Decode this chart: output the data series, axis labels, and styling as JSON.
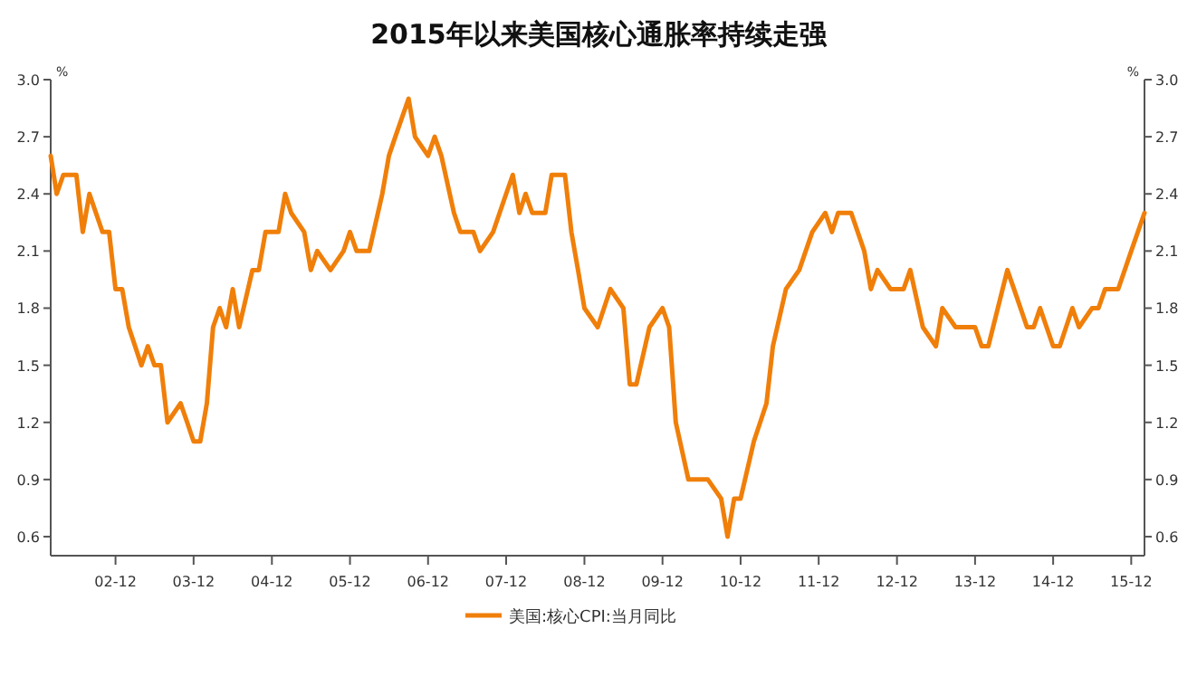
{
  "chart_data": {
    "type": "line",
    "title": "2015年以来美国核心通胀率持续走强",
    "ylabel": "%",
    "y2label": "%",
    "legend": "bottom",
    "x": [
      "2002-02",
      "2002-03",
      "2002-04",
      "2002-06",
      "2002-07",
      "2002-08",
      "2002-10",
      "2002-11",
      "2002-12",
      "2003-01",
      "2003-02",
      "2003-04",
      "2003-05",
      "2003-06",
      "2003-07",
      "2003-08",
      "2003-10",
      "2003-11",
      "2003-12",
      "2004-01",
      "2004-02",
      "2004-03",
      "2004-04",
      "2004-05",
      "2004-06",
      "2004-07",
      "2004-09",
      "2004-10",
      "2004-11",
      "2005-01",
      "2005-02",
      "2005-03",
      "2005-05",
      "2005-06",
      "2005-07",
      "2005-09",
      "2005-11",
      "2005-12",
      "2006-01",
      "2006-03",
      "2006-05",
      "2006-06",
      "2006-07",
      "2006-09",
      "2006-10",
      "2006-12",
      "2007-01",
      "2007-02",
      "2007-04",
      "2007-05",
      "2007-07",
      "2007-08",
      "2007-10",
      "2007-12",
      "2008-01",
      "2008-02",
      "2008-03",
      "2008-04",
      "2008-06",
      "2008-07",
      "2008-09",
      "2008-10",
      "2008-11",
      "2008-12",
      "2009-02",
      "2009-04",
      "2009-06",
      "2009-07",
      "2009-08",
      "2009-10",
      "2009-12",
      "2010-01",
      "2010-02",
      "2010-04",
      "2010-07",
      "2010-09",
      "2010-10",
      "2010-11",
      "2010-12",
      "2011-02",
      "2011-04",
      "2011-05",
      "2011-07",
      "2011-09",
      "2011-11",
      "2012-01",
      "2012-02",
      "2012-03",
      "2012-05",
      "2012-07",
      "2012-08",
      "2012-09",
      "2012-11",
      "2013-01",
      "2013-02",
      "2013-04",
      "2013-06",
      "2013-07",
      "2013-09",
      "2013-12",
      "2014-01",
      "2014-02",
      "2014-05",
      "2014-06",
      "2014-08",
      "2014-09",
      "2014-10",
      "2014-12",
      "2015-01",
      "2015-03",
      "2015-04",
      "2015-06",
      "2015-07",
      "2015-08",
      "2015-10",
      "2015-12",
      "2016-02"
    ],
    "series": [
      {
        "name": "美国:核心CPI:当月同比",
        "color": "#f07f0a",
        "values": [
          2.6,
          2.4,
          2.5,
          2.5,
          2.2,
          2.4,
          2.2,
          2.2,
          1.9,
          1.9,
          1.7,
          1.5,
          1.6,
          1.5,
          1.5,
          1.2,
          1.3,
          1.2,
          1.1,
          1.1,
          1.3,
          1.7,
          1.8,
          1.7,
          1.9,
          1.7,
          2.0,
          2.0,
          2.2,
          2.2,
          2.4,
          2.3,
          2.2,
          2.0,
          2.1,
          2.0,
          2.1,
          2.2,
          2.1,
          2.1,
          2.4,
          2.6,
          2.7,
          2.9,
          2.7,
          2.6,
          2.7,
          2.6,
          2.3,
          2.2,
          2.2,
          2.1,
          2.2,
          2.4,
          2.5,
          2.3,
          2.4,
          2.3,
          2.3,
          2.5,
          2.5,
          2.2,
          2.0,
          1.8,
          1.7,
          1.9,
          1.8,
          1.4,
          1.4,
          1.7,
          1.8,
          1.7,
          1.2,
          0.9,
          0.9,
          0.8,
          0.6,
          0.8,
          0.8,
          1.1,
          1.3,
          1.6,
          1.9,
          2.0,
          2.2,
          2.3,
          2.2,
          2.3,
          2.3,
          2.1,
          1.9,
          2.0,
          1.9,
          1.9,
          2.0,
          1.7,
          1.6,
          1.8,
          1.7,
          1.7,
          1.6,
          1.6,
          2.0,
          1.9,
          1.7,
          1.7,
          1.8,
          1.6,
          1.6,
          1.8,
          1.7,
          1.8,
          1.8,
          1.9,
          1.9,
          2.1,
          2.3
        ]
      }
    ],
    "xlim": [
      "2002-02",
      "2016-02"
    ],
    "xticks": [
      {
        "value": "2002-12",
        "label": "02-12"
      },
      {
        "value": "2003-12",
        "label": "03-12"
      },
      {
        "value": "2004-12",
        "label": "04-12"
      },
      {
        "value": "2005-12",
        "label": "05-12"
      },
      {
        "value": "2006-12",
        "label": "06-12"
      },
      {
        "value": "2007-12",
        "label": "07-12"
      },
      {
        "value": "2008-12",
        "label": "08-12"
      },
      {
        "value": "2009-12",
        "label": "09-12"
      },
      {
        "value": "2010-12",
        "label": "10-12"
      },
      {
        "value": "2011-12",
        "label": "11-12"
      },
      {
        "value": "2012-12",
        "label": "12-12"
      },
      {
        "value": "2013-12",
        "label": "13-12"
      },
      {
        "value": "2014-12",
        "label": "14-12"
      },
      {
        "value": "2015-12",
        "label": "15-12"
      }
    ],
    "ylim": [
      0.5,
      3.0
    ],
    "yticks": [
      0.6,
      0.9,
      1.2,
      1.5,
      1.8,
      2.1,
      2.4,
      2.7,
      {
        "value": 3,
        "label": "3.0"
      }
    ],
    "y2lim": [
      0.5,
      3.0
    ],
    "y2ticks": [
      0.6,
      0.9,
      1.2,
      1.5,
      1.8,
      2.1,
      2.4,
      2.7,
      {
        "value": 3,
        "label": "3.0"
      }
    ]
  }
}
